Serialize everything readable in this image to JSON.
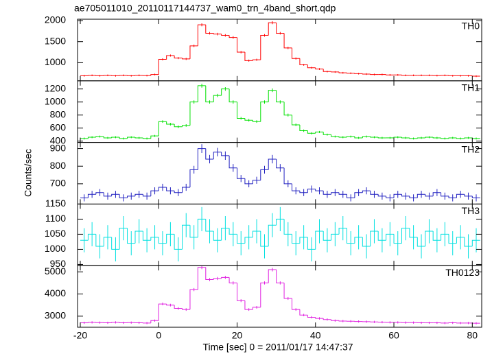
{
  "chart_data": {
    "type": "step",
    "title": "ae705011010_20110117144737_wam0_trn_4band_short.qdp",
    "xlabel": "Time [sec] 0 = 2011/01/17 14:47:37",
    "ylabel": "Counts/sec",
    "xlim": [
      -20.7,
      82.4
    ],
    "xticks": [
      -20,
      0,
      20,
      40,
      60,
      80
    ],
    "x": [
      -19,
      -17,
      -15,
      -13,
      -11,
      -9,
      -7,
      -5,
      -3,
      -1,
      1,
      3,
      5,
      7,
      9,
      11,
      13,
      15,
      17,
      19,
      21,
      23,
      25,
      27,
      29,
      31,
      33,
      35,
      37,
      39,
      41,
      43,
      45,
      47,
      49,
      51,
      53,
      55,
      57,
      59,
      61,
      63,
      65,
      67,
      69,
      71,
      73,
      75,
      77,
      79,
      81
    ],
    "series": [
      {
        "name": "TH0",
        "color": "#ff0000",
        "ylim": [
          570,
          2033
        ],
        "yticks": [
          1000,
          1500,
          2000
        ],
        "values": [
          690,
          700,
          690,
          700,
          690,
          700,
          690,
          700,
          695,
          720,
          1080,
          1170,
          1110,
          1090,
          1400,
          1900,
          1700,
          1680,
          1650,
          1600,
          1250,
          1050,
          1070,
          1650,
          1950,
          1700,
          1350,
          1100,
          950,
          880,
          850,
          790,
          780,
          760,
          750,
          740,
          730,
          720,
          720,
          710,
          710,
          700,
          700,
          700,
          700,
          695,
          700,
          690,
          690,
          690,
          680
        ],
        "errors": [
          20,
          20,
          20,
          20,
          20,
          20,
          20,
          20,
          20,
          20,
          25,
          25,
          25,
          25,
          30,
          35,
          30,
          30,
          30,
          30,
          28,
          25,
          25,
          30,
          35,
          30,
          28,
          25,
          22,
          22,
          22,
          20,
          20,
          20,
          20,
          20,
          20,
          20,
          20,
          20,
          20,
          20,
          20,
          20,
          20,
          20,
          20,
          20,
          20,
          20,
          20
        ]
      },
      {
        "name": "TH1",
        "color": "#00e000",
        "ylim": [
          380,
          1325
        ],
        "yticks": [
          400,
          600,
          800,
          1000,
          1200
        ],
        "values": [
          440,
          460,
          470,
          450,
          460,
          440,
          460,
          450,
          440,
          480,
          700,
          660,
          620,
          640,
          1000,
          1250,
          1000,
          1100,
          1200,
          1000,
          750,
          720,
          700,
          1000,
          1180,
          1000,
          800,
          650,
          560,
          520,
          540,
          500,
          470,
          460,
          470,
          450,
          470,
          460,
          450,
          450,
          460,
          450,
          440,
          450,
          460,
          450,
          440,
          450,
          440,
          450,
          440
        ],
        "errors": [
          15,
          15,
          15,
          15,
          15,
          15,
          15,
          15,
          15,
          15,
          20,
          20,
          20,
          20,
          25,
          30,
          25,
          25,
          28,
          25,
          20,
          20,
          20,
          25,
          28,
          25,
          22,
          20,
          18,
          16,
          16,
          15,
          15,
          15,
          15,
          15,
          15,
          15,
          15,
          15,
          15,
          15,
          15,
          15,
          15,
          15,
          15,
          15,
          15,
          15,
          15
        ]
      },
      {
        "name": "TH2",
        "color": "#2020c0",
        "ylim": [
          585,
          935
        ],
        "yticks": [
          700,
          800,
          900
        ],
        "values": [
          620,
          640,
          650,
          630,
          640,
          620,
          630,
          640,
          630,
          660,
          680,
          660,
          650,
          680,
          780,
          900,
          840,
          880,
          860,
          790,
          730,
          700,
          720,
          780,
          840,
          790,
          700,
          660,
          650,
          670,
          660,
          640,
          650,
          640,
          620,
          650,
          660,
          640,
          630,
          620,
          640,
          630,
          620,
          640,
          630,
          650,
          630,
          620,
          640,
          630,
          620
        ],
        "errors": [
          20,
          20,
          20,
          20,
          20,
          20,
          20,
          20,
          20,
          20,
          20,
          20,
          20,
          20,
          22,
          25,
          24,
          24,
          24,
          22,
          20,
          20,
          20,
          22,
          24,
          22,
          20,
          20,
          20,
          20,
          20,
          20,
          20,
          20,
          20,
          20,
          20,
          20,
          20,
          20,
          20,
          20,
          20,
          20,
          20,
          20,
          20,
          20,
          20,
          20,
          20
        ]
      },
      {
        "name": "TH3",
        "color": "#00e0e0",
        "ylim": [
          946,
          1150
        ],
        "yticks": [
          950,
          1000,
          1050,
          1100,
          1150
        ],
        "values": [
          1030,
          1050,
          1010,
          1040,
          1000,
          1070,
          1020,
          1060,
          1030,
          1040,
          1020,
          1050,
          1000,
          1080,
          1040,
          1100,
          1060,
          1030,
          1070,
          1050,
          1020,
          1040,
          1060,
          1010,
          1080,
          1100,
          1050,
          1020,
          1040,
          1000,
          1060,
          1030,
          1050,
          1070,
          1020,
          1040,
          1010,
          1060,
          1030,
          1050,
          1020,
          1070,
          1040,
          1010,
          1060,
          1030,
          1050,
          1020,
          1040,
          1010,
          1030
        ],
        "errors": [
          40,
          40,
          40,
          40,
          40,
          40,
          40,
          40,
          40,
          40,
          40,
          40,
          40,
          40,
          40,
          40,
          40,
          40,
          40,
          40,
          40,
          40,
          40,
          40,
          40,
          40,
          40,
          40,
          40,
          40,
          40,
          40,
          40,
          40,
          40,
          40,
          40,
          40,
          40,
          40,
          40,
          40,
          40,
          40,
          40,
          40,
          40,
          40,
          40,
          40,
          40
        ]
      },
      {
        "name": "TH0123",
        "color": "#e020e0",
        "ylim": [
          2500,
          5280
        ],
        "yticks": [
          3000,
          4000,
          5000
        ],
        "values": [
          2700,
          2720,
          2710,
          2700,
          2720,
          2700,
          2710,
          2700,
          2690,
          2800,
          3550,
          3500,
          3350,
          3300,
          4200,
          5200,
          4650,
          4700,
          4750,
          4500,
          3700,
          3300,
          3400,
          4500,
          5100,
          4500,
          3800,
          3300,
          3050,
          2950,
          2900,
          2850,
          2800,
          2780,
          2770,
          2760,
          2750,
          2740,
          2730,
          2720,
          2720,
          2710,
          2710,
          2700,
          2700,
          2700,
          2690,
          2700,
          2690,
          2690,
          2680
        ],
        "errors": [
          50,
          50,
          50,
          50,
          50,
          50,
          50,
          50,
          50,
          50,
          60,
          60,
          60,
          60,
          70,
          80,
          70,
          70,
          70,
          70,
          65,
          60,
          60,
          70,
          80,
          70,
          65,
          60,
          55,
          55,
          55,
          50,
          50,
          50,
          50,
          50,
          50,
          50,
          50,
          50,
          50,
          50,
          50,
          50,
          50,
          50,
          50,
          50,
          50,
          50,
          50
        ]
      }
    ]
  }
}
